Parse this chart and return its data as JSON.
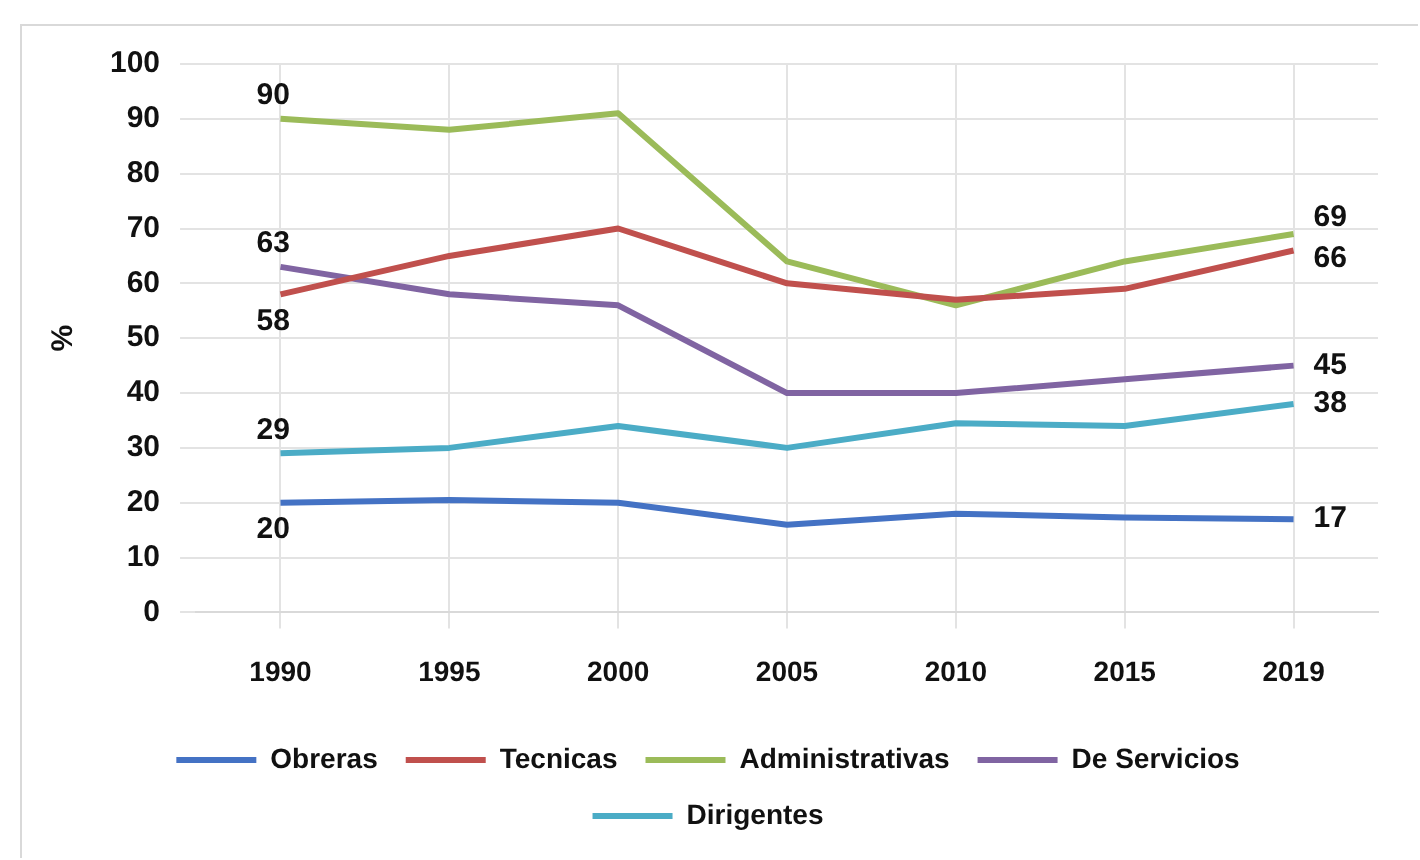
{
  "chart_data": {
    "type": "line",
    "ylabel": "%",
    "categories": [
      "1990",
      "1995",
      "2000",
      "2005",
      "2010",
      "2015",
      "2019"
    ],
    "ylim": [
      0,
      100
    ],
    "yticks": [
      0,
      10,
      20,
      30,
      40,
      50,
      60,
      70,
      80,
      90,
      100
    ],
    "grid": true,
    "legend": "bottom",
    "marker": "none",
    "series": [
      {
        "name": "Obreras",
        "color": "#4472c4",
        "values": [
          20,
          20.5,
          20,
          16,
          18,
          17.3,
          17
        ],
        "value_labels": [
          "20",
          null,
          null,
          null,
          null,
          null,
          "17"
        ]
      },
      {
        "name": "Tecnicas",
        "color": "#c0504d",
        "values": [
          58,
          65,
          70,
          60,
          57,
          59,
          66
        ],
        "value_labels": [
          "58",
          null,
          null,
          null,
          null,
          null,
          "66"
        ]
      },
      {
        "name": "Administrativas",
        "color": "#9bbb59",
        "values": [
          90,
          88,
          91,
          64,
          56,
          64,
          69
        ],
        "value_labels": [
          "90",
          null,
          null,
          null,
          null,
          null,
          "69"
        ]
      },
      {
        "name": "De Servicios",
        "color": "#8064a2",
        "values": [
          63,
          58,
          56,
          40,
          40,
          42.5,
          45
        ],
        "value_labels": [
          "63",
          null,
          null,
          null,
          null,
          null,
          "45"
        ]
      },
      {
        "name": "Dirigentes",
        "color": "#4bacc6",
        "values": [
          29,
          30,
          34,
          30,
          34.5,
          34,
          38
        ],
        "value_labels": [
          "29",
          null,
          null,
          null,
          null,
          null,
          "38"
        ]
      }
    ]
  }
}
